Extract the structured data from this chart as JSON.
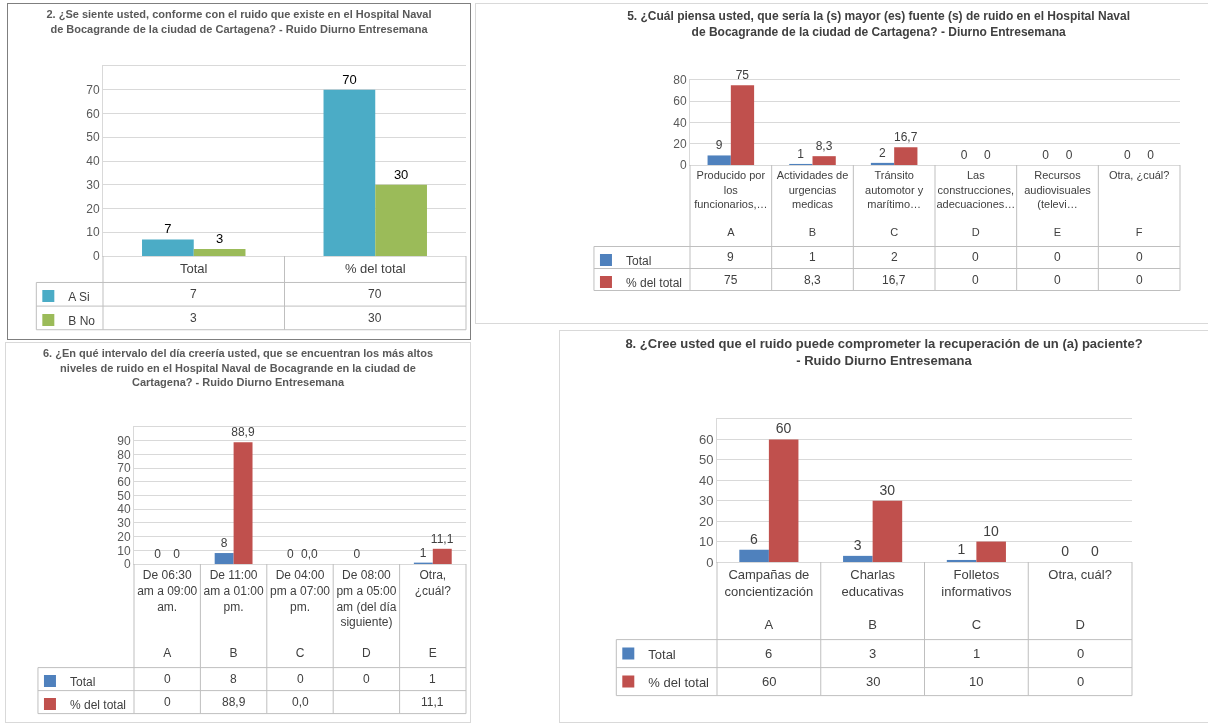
{
  "chart_data": [
    {
      "type": "bar",
      "title": "2. ¿Se siente usted, conforme con el ruido que existe en el Hospital Naval de Bocagrande de la ciudad de Cartagena? - Ruido Diurno Entresemana",
      "categories": [
        "Total",
        "% del total"
      ],
      "series": [
        {
          "name": "A Si",
          "color": "#4bacc6",
          "values": [
            7,
            70
          ],
          "value_labels": [
            "7",
            "70"
          ]
        },
        {
          "name": "B No",
          "color": "#9bbb59",
          "values": [
            3,
            30
          ],
          "value_labels": [
            "3",
            "30"
          ]
        }
      ],
      "ylim": [
        0,
        80
      ],
      "yticks": [
        0,
        10,
        20,
        30,
        40,
        50,
        60,
        70,
        {
          "value": 80,
          "label": null
        }
      ],
      "grid": "y",
      "legend": "bottom left"
    },
    {
      "type": "bar",
      "title": "5. ¿Cuál piensa usted, que sería la (s) mayor (es) fuente (s) de ruido en el Hospital Naval de Bocagrande de la ciudad de Cartagena? - Diurno Entresemana",
      "categories": [
        "Producido por los funcionarios,…\nA",
        "Actividades de urgencias medicas\nB",
        "Tránsito automotor y marítimo…\nC",
        "Las construcciones, adecuaciones…\nD",
        "Recursos audiovisuales (televi…\nE",
        "Otra, ¿cuál?\nF"
      ],
      "series": [
        {
          "name": "Total",
          "color": "#4f81bd",
          "values": [
            9,
            1,
            2,
            0,
            0,
            0
          ],
          "value_labels": [
            "9",
            "1",
            "2",
            "0",
            "0",
            "0"
          ]
        },
        {
          "name": "% del total",
          "color": "#c0504d",
          "values": [
            75,
            8.3,
            16.7,
            0,
            0,
            0
          ],
          "value_labels": [
            "75",
            "8,3",
            "16,7",
            "0",
            "0",
            "0"
          ]
        }
      ],
      "ylim": [
        0,
        80
      ],
      "yticks": [
        0,
        20,
        40,
        60,
        80
      ],
      "grid": "y",
      "legend": "bottom left"
    },
    {
      "type": "bar",
      "title": "6. ¿En qué intervalo del día creería usted, que se encuentran los más altos niveles de ruido en el Hospital Naval de Bocagrande en la ciudad de Cartagena? - Ruido Diurno Entresemana",
      "categories": [
        "De 06:30 am a 09:00 am.\nA",
        "De 11:00 am a 01:00 pm.\nB",
        "De 04:00 pm a 07:00 pm.\nC",
        "De 08:00 pm a 05:00 am (del día siguiente)\nD",
        "Otra, ¿cuál?\nE"
      ],
      "series": [
        {
          "name": "Total",
          "color": "#4f81bd",
          "values": [
            0,
            8,
            0,
            0,
            1
          ],
          "value_labels": [
            "0",
            "8",
            "0",
            "0",
            "1"
          ]
        },
        {
          "name": "% del total",
          "color": "#c0504d",
          "values": [
            0,
            88.9,
            0,
            null,
            11.1
          ],
          "value_labels": [
            "0",
            "88,9",
            "0,0",
            null,
            "11,1"
          ]
        }
      ],
      "ylim": [
        0,
        100
      ],
      "yticks": [
        0,
        10,
        20,
        30,
        40,
        50,
        60,
        70,
        80,
        90,
        {
          "value": 100,
          "label": null
        }
      ],
      "grid": "y",
      "legend": "bottom left"
    },
    {
      "type": "bar",
      "title": "8. ¿Cree usted que el ruido puede comprometer la recuperación de un (a) paciente? - Ruido Diurno Entresemana",
      "categories": [
        "Campañas de concientización\nA",
        "Charlas educativas\nB",
        "Folletos informativos\nC",
        "Otra, cuál?\nD"
      ],
      "series": [
        {
          "name": "Total",
          "color": "#4f81bd",
          "values": [
            6,
            3,
            1,
            0
          ],
          "value_labels": [
            "6",
            "3",
            "1",
            "0"
          ]
        },
        {
          "name": "% del total",
          "color": "#c0504d",
          "values": [
            60,
            30,
            10,
            0
          ],
          "value_labels": [
            "60",
            "30",
            "10",
            "0"
          ]
        }
      ],
      "ylim": [
        0,
        70
      ],
      "yticks": [
        0,
        10,
        20,
        30,
        40,
        50,
        60,
        {
          "value": 70,
          "label": null
        }
      ],
      "grid": "y",
      "legend": "bottom left"
    }
  ]
}
